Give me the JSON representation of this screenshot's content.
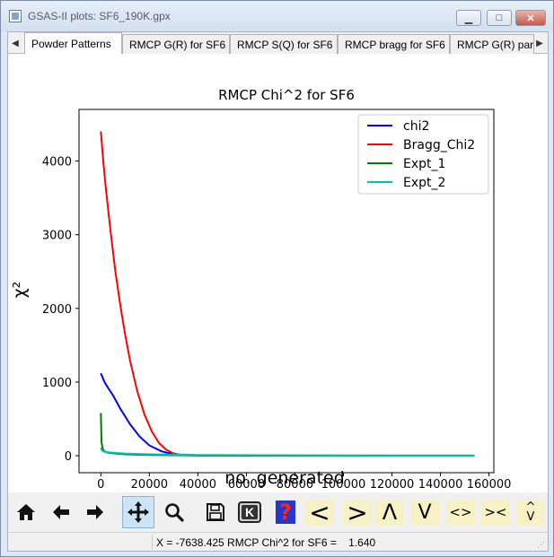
{
  "window": {
    "title": "GSAS-II plots: SF6_190K.gpx",
    "minimize_glyph": "▁",
    "maximize_glyph": "□",
    "close_glyph": "✕"
  },
  "tabs": {
    "scroll_left": "◀",
    "scroll_right": "▶",
    "items": [
      {
        "label": "Powder Patterns"
      },
      {
        "label": "RMCP G(R) for SF6"
      },
      {
        "label": "RMCP S(Q) for SF6"
      },
      {
        "label": "RMCP bragg for SF6"
      },
      {
        "label": "RMCP G(R) part"
      }
    ]
  },
  "chart_data": {
    "type": "line",
    "title": "RMCP Chi^2 for SF6",
    "xlabel": "no. generated",
    "ylabel": "χ²",
    "xlim": [
      -9000,
      162000
    ],
    "ylim": [
      -230,
      4700
    ],
    "xticks": [
      0,
      20000,
      40000,
      60000,
      80000,
      100000,
      120000,
      140000,
      160000
    ],
    "yticks": [
      0,
      1000,
      2000,
      3000,
      4000
    ],
    "grid": false,
    "legend_position": "top-right",
    "series": [
      {
        "name": "chi2",
        "color": "#0000ff",
        "x": [
          0,
          1500,
          3000,
          5000,
          8000,
          12000,
          16000,
          20000,
          25000,
          30000,
          40000,
          60000,
          100000,
          154000
        ],
        "y": [
          1120,
          1000,
          920,
          820,
          640,
          430,
          260,
          140,
          60,
          20,
          6,
          2,
          1,
          1
        ]
      },
      {
        "name": "Bragg_Chi2",
        "color": "#ff0000",
        "x": [
          0,
          1000,
          2000,
          4000,
          6000,
          8000,
          10000,
          12000,
          15000,
          18000,
          21000,
          24000,
          27000,
          30000,
          33000,
          38000,
          45000,
          60000,
          100000,
          154000
        ],
        "y": [
          4400,
          4000,
          3650,
          3050,
          2500,
          2050,
          1650,
          1300,
          880,
          560,
          330,
          170,
          80,
          30,
          12,
          5,
          3,
          2,
          1,
          1
        ]
      },
      {
        "name": "Expt_1",
        "color": "#008000",
        "x": [
          0,
          300,
          800,
          1500,
          3000,
          6000,
          10000,
          20000,
          40000,
          100000,
          154000
        ],
        "y": [
          580,
          180,
          90,
          60,
          40,
          30,
          20,
          10,
          5,
          2,
          2
        ]
      },
      {
        "name": "Expt_2",
        "color": "#00bfbf",
        "x": [
          0,
          300,
          1000,
          2000,
          5000,
          10000,
          20000,
          40000,
          100000,
          154000
        ],
        "y": [
          110,
          80,
          60,
          50,
          40,
          30,
          20,
          10,
          5,
          3
        ]
      }
    ]
  },
  "toolbar": {
    "home_icon": "home-icon",
    "back_icon": "left-arrow-icon",
    "forward_icon": "right-arrow-icon",
    "pan_icon": "move-icon",
    "zoom_icon": "magnifier-icon",
    "save_icon": "floppy-icon",
    "key_label": "K",
    "help_label": "?",
    "btn_left": "<",
    "btn_right": ">",
    "btn_up": "Λ",
    "btn_down": "V",
    "btn_expand_h": "<>",
    "btn_shrink_h": "><",
    "btn_up_top": "^",
    "btn_down_bottom": "V"
  },
  "status": {
    "text": "X = -7638.425 RMCP Chi^2 for SF6 =    1.640"
  }
}
